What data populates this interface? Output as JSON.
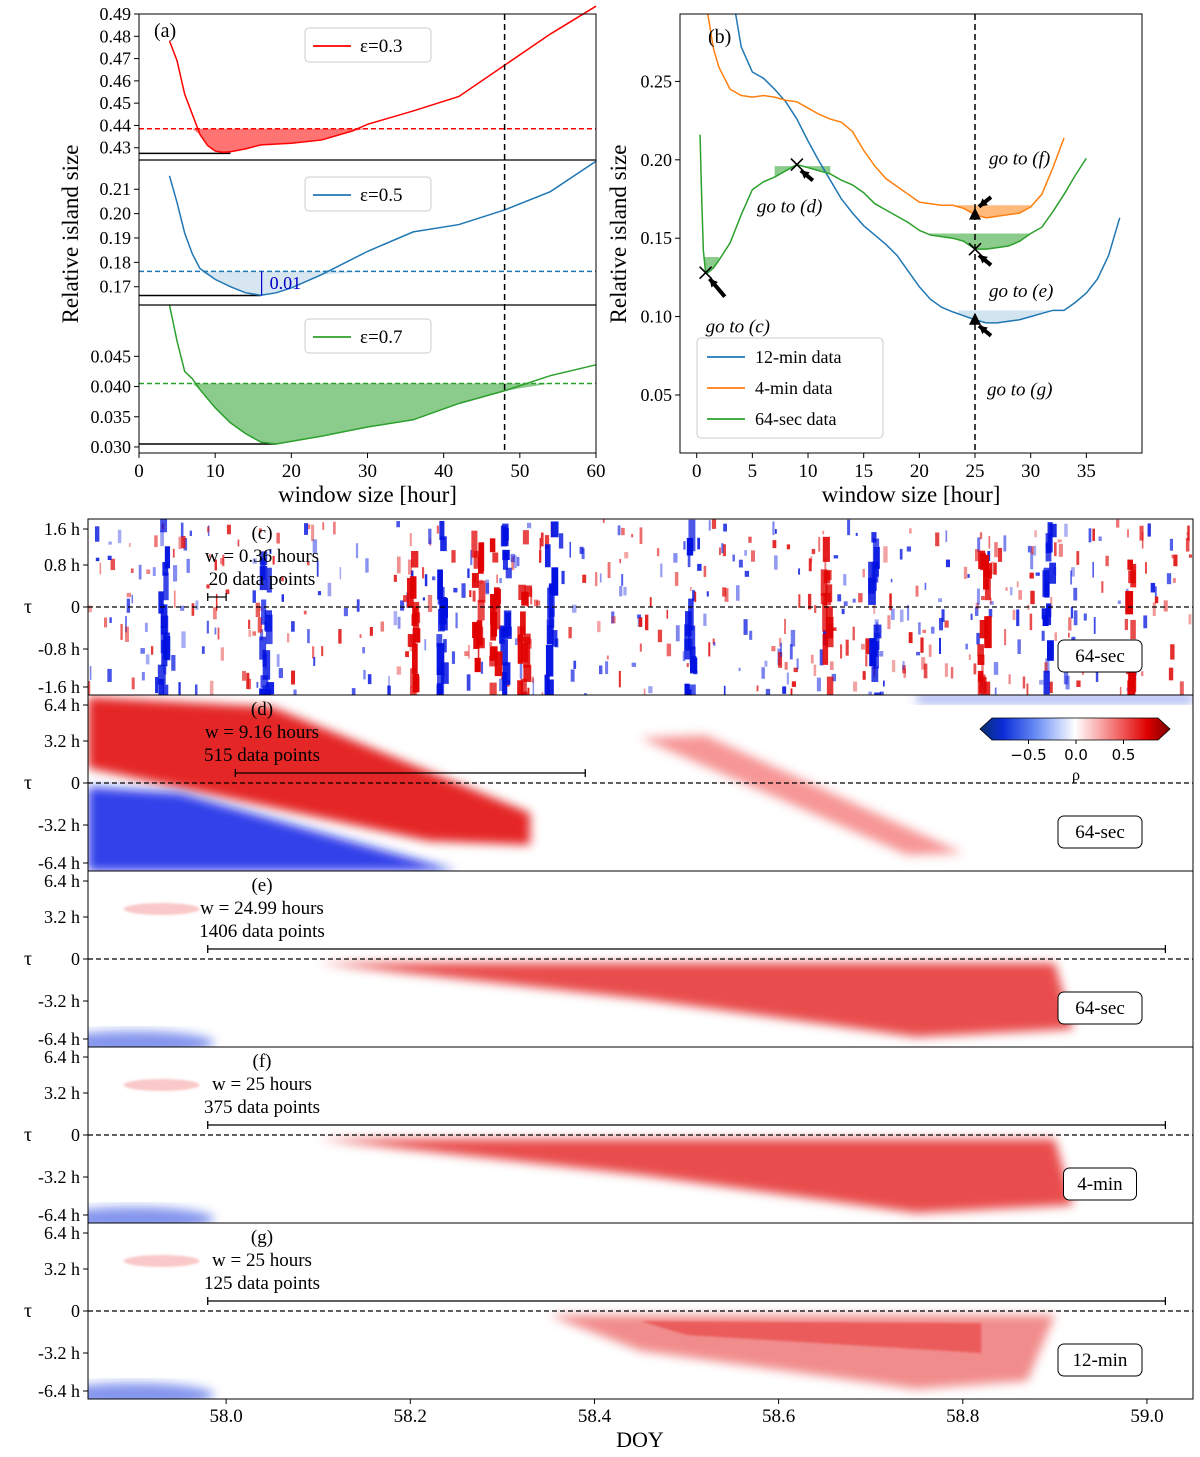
{
  "figure": {
    "panel_a": {
      "label": "(a)",
      "xlabel": "window size [hour]",
      "ylabel": "Relative island size",
      "xticks": [
        0,
        10,
        20,
        30,
        40,
        50,
        60
      ],
      "vline": 48,
      "subpanels": [
        {
          "legend": "ε=0.3",
          "color": "#ff0000",
          "ylim": [
            0.4245,
            0.49
          ],
          "yticks": [
            0.43,
            0.44,
            0.45,
            0.46,
            0.47,
            0.48,
            0.49
          ],
          "ytick_labels": [
            "0.43",
            "0.44",
            "0.45",
            "0.46",
            "0.47",
            "0.48",
            "0.49"
          ],
          "threshold": 0.4385,
          "min_line": [
            0,
            0.4275,
            12
          ],
          "x": [
            4,
            5,
            6,
            7,
            8,
            9,
            10,
            11,
            12,
            14,
            16,
            20,
            24,
            28,
            30,
            36,
            42,
            48,
            54,
            60
          ],
          "y": [
            0.478,
            0.469,
            0.454,
            0.445,
            0.436,
            0.431,
            0.4285,
            0.428,
            0.4282,
            0.4295,
            0.4313,
            0.432,
            0.4335,
            0.4375,
            0.4405,
            0.4465,
            0.453,
            0.467,
            0.481,
            0.4935
          ]
        },
        {
          "legend": "ε=0.5",
          "color": "#1f77b4",
          "ylim": [
            0.1625,
            0.222
          ],
          "yticks": [
            0.17,
            0.18,
            0.19,
            0.2,
            0.21
          ],
          "ytick_labels": [
            "0.17",
            "0.18",
            "0.19",
            "0.20",
            "0.21"
          ],
          "threshold": 0.1763,
          "min_line": [
            0,
            0.1664,
            16
          ],
          "annotation": "0.01",
          "x": [
            4,
            5,
            6,
            7,
            8,
            10,
            12,
            14,
            16,
            18,
            20,
            24,
            30,
            36,
            42,
            48,
            54,
            60
          ],
          "y": [
            0.2155,
            0.2045,
            0.192,
            0.1835,
            0.1775,
            0.173,
            0.17,
            0.1675,
            0.1665,
            0.1675,
            0.1695,
            0.175,
            0.1845,
            0.1925,
            0.1955,
            0.2015,
            0.209,
            0.2215
          ]
        },
        {
          "legend": "ε=0.7",
          "color": "#2ca02c",
          "ylim": [
            0.029,
            0.0535
          ],
          "yticks": [
            0.03,
            0.035,
            0.04,
            0.045
          ],
          "ytick_labels": [
            "0.030",
            "0.035",
            "0.040",
            "0.045"
          ],
          "threshold": 0.0405,
          "min_line": [
            0,
            0.0305,
            18
          ],
          "x": [
            4,
            5,
            6,
            7,
            8,
            10,
            12,
            14,
            16,
            18,
            24,
            30,
            36,
            42,
            48,
            54,
            60
          ],
          "y": [
            0.0535,
            0.0475,
            0.0425,
            0.0413,
            0.0395,
            0.0365,
            0.034,
            0.0322,
            0.0308,
            0.0305,
            0.0318,
            0.0333,
            0.0345,
            0.0372,
            0.0393,
            0.0418,
            0.0436
          ]
        }
      ]
    },
    "panel_b": {
      "label": "(b)",
      "xlabel": "window size [hour]",
      "ylabel": "Relative island size",
      "xticks": [
        0,
        5,
        10,
        15,
        20,
        25,
        30,
        35
      ],
      "yticks": [
        0.05,
        0.1,
        0.15,
        0.2,
        0.25
      ],
      "ytick_labels": [
        "0.05",
        "0.10",
        "0.15",
        "0.20",
        "0.25"
      ],
      "xlim": [
        -1.5,
        40
      ],
      "ylim": [
        0.013,
        0.293
      ],
      "vline": 25,
      "legend": [
        "12-min data",
        "4-min data",
        "64-sec data"
      ],
      "series": [
        {
          "name": "12-min data",
          "color": "#1f77b4",
          "x": [
            3.5,
            4,
            5,
            6,
            7,
            8,
            9,
            10,
            11,
            12,
            13,
            14,
            15,
            16,
            17,
            18,
            19,
            20,
            21,
            22,
            23,
            24,
            25,
            26,
            27,
            28,
            29,
            30,
            31,
            32,
            33,
            34,
            35,
            36,
            37,
            38
          ],
          "y": [
            0.293,
            0.272,
            0.256,
            0.252,
            0.245,
            0.237,
            0.226,
            0.212,
            0.199,
            0.187,
            0.175,
            0.166,
            0.158,
            0.152,
            0.146,
            0.139,
            0.129,
            0.119,
            0.111,
            0.106,
            0.103,
            0.1005,
            0.098,
            0.096,
            0.096,
            0.097,
            0.098,
            0.1,
            0.102,
            0.104,
            0.104,
            0.109,
            0.115,
            0.124,
            0.139,
            0.163
          ]
        },
        {
          "name": "4-min data",
          "color": "#ff7f0e",
          "x": [
            1,
            1.5,
            2,
            3,
            4,
            5,
            6,
            7,
            8,
            9,
            10,
            11,
            12,
            13,
            14,
            15,
            16,
            17,
            18,
            19,
            20,
            21,
            22,
            23,
            24,
            25,
            26,
            27,
            28,
            29,
            30,
            31,
            32,
            33
          ],
          "y": [
            0.293,
            0.271,
            0.259,
            0.245,
            0.241,
            0.24,
            0.241,
            0.24,
            0.238,
            0.237,
            0.233,
            0.229,
            0.226,
            0.224,
            0.218,
            0.206,
            0.196,
            0.188,
            0.183,
            0.178,
            0.173,
            0.172,
            0.171,
            0.171,
            0.169,
            0.165,
            0.163,
            0.164,
            0.165,
            0.166,
            0.17,
            0.178,
            0.195,
            0.214
          ]
        },
        {
          "name": "64-sec data",
          "color": "#2ca02c",
          "x": [
            0.3,
            0.45,
            0.6,
            0.8,
            1,
            1.5,
            2,
            3,
            4,
            5,
            6,
            7,
            8,
            9,
            10,
            11,
            12,
            13,
            14,
            15,
            16,
            17,
            18,
            19,
            20,
            21,
            22,
            23,
            24,
            25,
            26,
            27,
            28,
            29,
            30,
            31,
            32,
            33,
            34,
            35
          ],
          "y": [
            0.216,
            0.175,
            0.142,
            0.128,
            0.128,
            0.131,
            0.136,
            0.147,
            0.165,
            0.181,
            0.186,
            0.189,
            0.193,
            0.197,
            0.195,
            0.193,
            0.191,
            0.187,
            0.184,
            0.179,
            0.172,
            0.168,
            0.164,
            0.16,
            0.155,
            0.152,
            0.151,
            0.15,
            0.148,
            0.143,
            0.143,
            0.144,
            0.145,
            0.148,
            0.153,
            0.157,
            0.167,
            0.178,
            0.19,
            0.201
          ]
        }
      ],
      "fills": [
        {
          "color": "#2ca02c",
          "x0": 0.6,
          "x1": 2,
          "level": 0.138
        },
        {
          "color": "#2ca02c",
          "x0": 7,
          "x1": 12,
          "level": 0.196
        },
        {
          "color": "#2ca02c",
          "x0": 20,
          "x1": 30,
          "level": 0.153
        },
        {
          "color": "#ff7f0e",
          "x0": 20,
          "x1": 30,
          "level": 0.171
        },
        {
          "color": "#1f77b4",
          "x0": 23.5,
          "x1": 32.5,
          "level": 0.104
        }
      ],
      "markers": [
        {
          "kind": "x",
          "x": 0.8,
          "y": 0.128,
          "label": "go to (c)"
        },
        {
          "kind": "x",
          "x": 9,
          "y": 0.197,
          "label": "go to (d)"
        },
        {
          "kind": "x",
          "x": 25,
          "y": 0.143,
          "label": "go to (e)"
        },
        {
          "kind": "tri",
          "x": 25,
          "y": 0.165,
          "label": "go to (f)"
        },
        {
          "kind": "tri",
          "x": 25,
          "y": 0.098,
          "label": "go to (g)"
        }
      ]
    },
    "heatmaps": {
      "xlabel": "DOY",
      "ylabel": "τ",
      "xlim": [
        57.85,
        59.05
      ],
      "xticks": [
        58.0,
        58.2,
        58.4,
        58.6,
        58.8,
        59.0
      ],
      "xtick_labels": [
        "58.0",
        "58.2",
        "58.4",
        "58.6",
        "58.8",
        "59.0"
      ],
      "colorbar": {
        "label": "ρ",
        "ticks": [
          "−0.5",
          "0.0",
          "0.5"
        ]
      },
      "panels": [
        {
          "label": "(c)",
          "line1": "w = 0.36 hours",
          "line2": "20 data points",
          "badge": "64-sec",
          "ytick_labels": [
            "1.6 h",
            "0.8 h",
            "0",
            "-0.8 h",
            "-1.6 h"
          ],
          "bar": [
            57.98,
            58.0
          ]
        },
        {
          "label": "(d)",
          "line1": "w = 9.16 hours",
          "line2": "515 data points",
          "badge": "64-sec",
          "ytick_labels": [
            "6.4 h",
            "3.2 h",
            "0",
            "-3.2 h",
            "-6.4 h"
          ],
          "bar": [
            58.01,
            58.39
          ]
        },
        {
          "label": "(e)",
          "line1": "w = 24.99 hours",
          "line2": "1406 data points",
          "badge": "64-sec",
          "ytick_labels": [
            "6.4 h",
            "3.2 h",
            "0",
            "-3.2 h",
            "-6.4 h"
          ],
          "bar": [
            57.98,
            59.02
          ]
        },
        {
          "label": "(f)",
          "line1": "w = 25 hours",
          "line2": "375 data points",
          "badge": "4-min",
          "ytick_labels": [
            "6.4 h",
            "3.2 h",
            "0",
            "-3.2 h",
            "-6.4 h"
          ],
          "bar": [
            57.98,
            59.02
          ]
        },
        {
          "label": "(g)",
          "line1": "w = 25 hours",
          "line2": "125 data points",
          "badge": "12-min",
          "ytick_labels": [
            "6.4 h",
            "3.2 h",
            "0",
            "-3.2 h",
            "-6.4 h"
          ],
          "bar": [
            57.98,
            59.02
          ]
        }
      ]
    }
  }
}
